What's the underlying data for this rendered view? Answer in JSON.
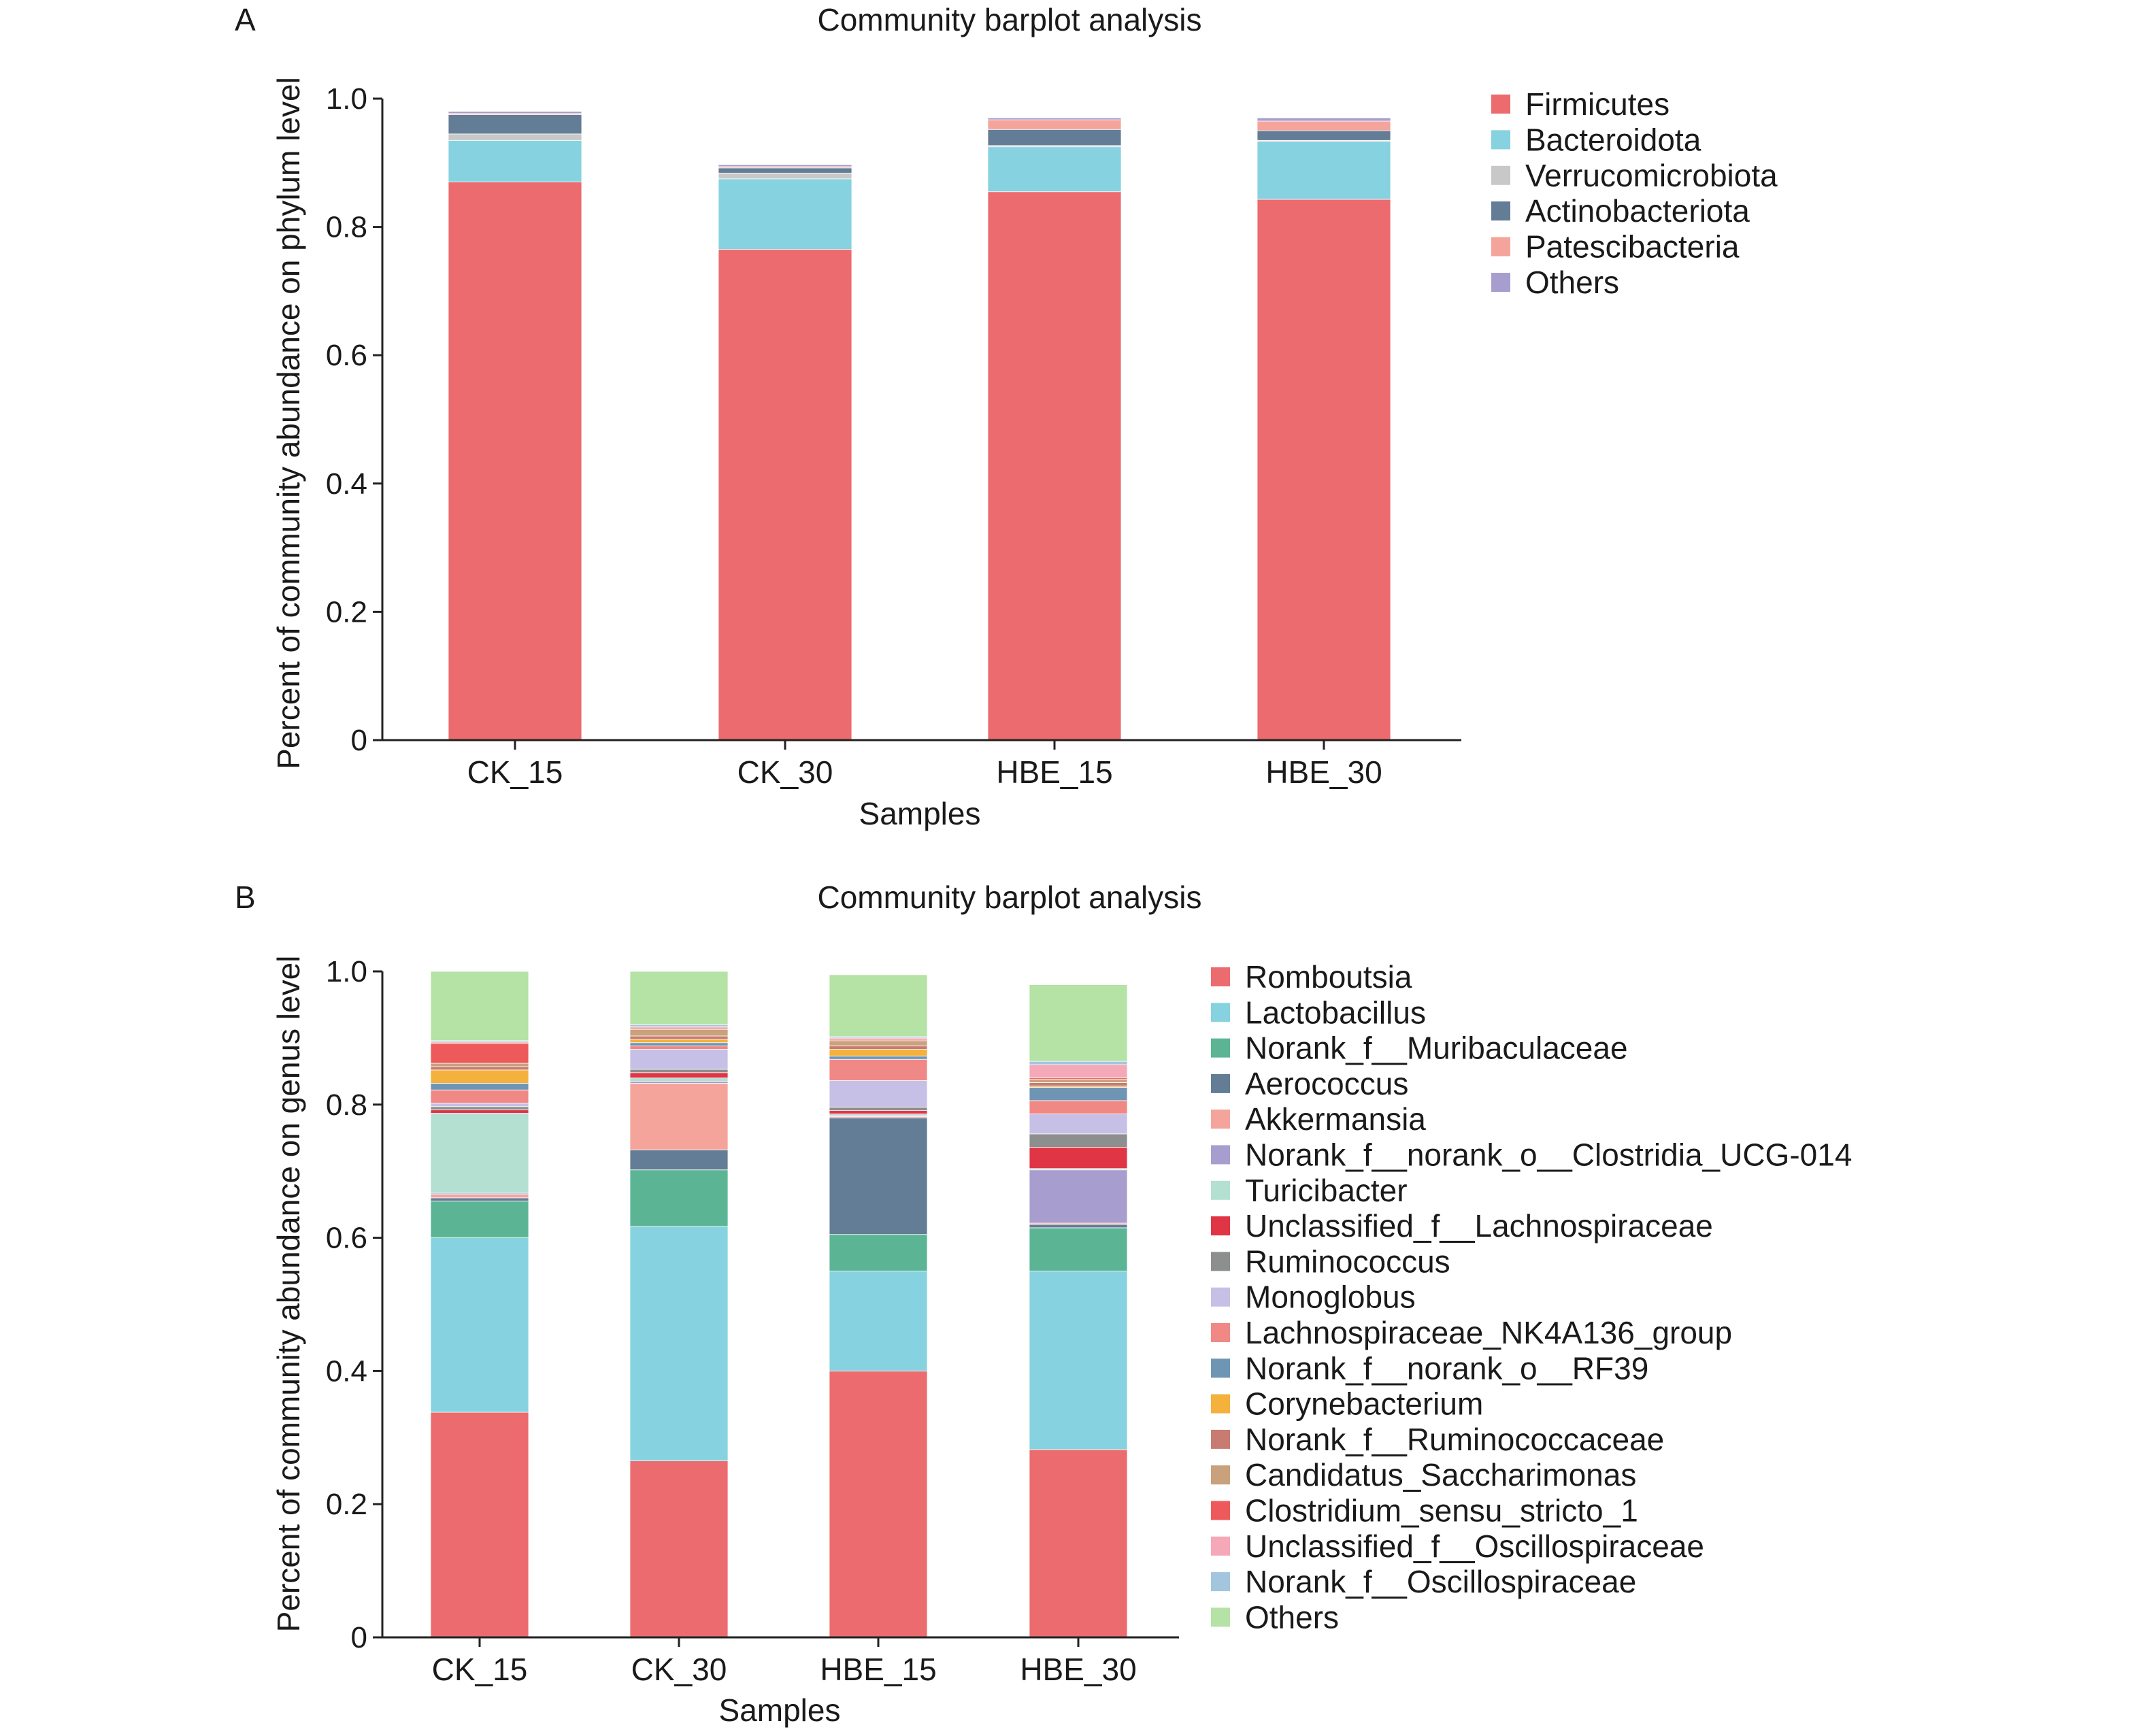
{
  "chart_data": [
    {
      "panel": "A",
      "type": "bar",
      "stacked": true,
      "title": "Community barplot analysis",
      "xlabel": "Samples",
      "ylabel": "Percent of community abundance on phylum level",
      "ylim": [
        0,
        1.0
      ],
      "yticks": [
        "0",
        "0.2",
        "0.4",
        "0.6",
        "0.8",
        "1.0"
      ],
      "categories": [
        "CK_15",
        "CK_30",
        "HBE_15",
        "HBE_30"
      ],
      "legend_position": "right",
      "series": [
        {
          "name": "Firmicutes",
          "color": "#ec6b6e",
          "values": [
            0.87,
            0.765,
            0.855,
            0.843
          ]
        },
        {
          "name": "Bacteroidota",
          "color": "#86d2e0",
          "values": [
            0.065,
            0.11,
            0.07,
            0.09
          ]
        },
        {
          "name": "Verrucomicrobiota",
          "color": "#c8c8c8",
          "values": [
            0.01,
            0.009,
            0.002,
            0.002
          ]
        },
        {
          "name": "Actinobacteriota",
          "color": "#647d96",
          "values": [
            0.03,
            0.008,
            0.025,
            0.015
          ]
        },
        {
          "name": "Patescibacteria",
          "color": "#f4a49a",
          "values": [
            0.002,
            0.002,
            0.015,
            0.015
          ]
        },
        {
          "name": "Others",
          "color": "#a79ecf",
          "values": [
            0.003,
            0.003,
            0.003,
            0.005
          ]
        }
      ]
    },
    {
      "panel": "B",
      "type": "bar",
      "stacked": true,
      "title": "Community barplot analysis",
      "xlabel": "Samples",
      "ylabel": "Percent of community abundance on genus level",
      "ylim": [
        0,
        1.0
      ],
      "yticks": [
        "0",
        "0.2",
        "0.4",
        "0.6",
        "0.8",
        "1.0"
      ],
      "categories": [
        "CK_15",
        "CK_30",
        "HBE_15",
        "HBE_30"
      ],
      "legend_position": "right",
      "series": [
        {
          "name": "Romboutsia",
          "color": "#ec6b6e",
          "values": [
            0.338,
            0.265,
            0.4,
            0.282
          ]
        },
        {
          "name": "Lactobacillus",
          "color": "#86d2e0",
          "values": [
            0.262,
            0.352,
            0.15,
            0.268
          ]
        },
        {
          "name": "Norank_f__Muribaculaceae",
          "color": "#5bb594",
          "values": [
            0.055,
            0.085,
            0.055,
            0.065
          ]
        },
        {
          "name": "Aerococcus",
          "color": "#647d96",
          "values": [
            0.005,
            0.03,
            0.175,
            0.005
          ]
        },
        {
          "name": "Akkermansia",
          "color": "#f4a49a",
          "values": [
            0.005,
            0.1,
            0.002,
            0.002
          ]
        },
        {
          "name": "Norank_f__norank_o__Clostridia_UCG-014",
          "color": "#a79ecf",
          "values": [
            0.002,
            0.003,
            0.002,
            0.08
          ]
        },
        {
          "name": "Turicibacter",
          "color": "#b3e0d1",
          "values": [
            0.12,
            0.005,
            0.002,
            0.002
          ]
        },
        {
          "name": "Unclassified_f__Lachnospiraceae",
          "color": "#e03545",
          "values": [
            0.005,
            0.008,
            0.005,
            0.032
          ]
        },
        {
          "name": "Ruminococcus",
          "color": "#8d8f8f",
          "values": [
            0.005,
            0.005,
            0.005,
            0.02
          ]
        },
        {
          "name": "Monoglobus",
          "color": "#c6c0e6",
          "values": [
            0.005,
            0.03,
            0.04,
            0.03
          ]
        },
        {
          "name": "Lachnospiraceae_NK4A136_group",
          "color": "#f08886",
          "values": [
            0.02,
            0.005,
            0.032,
            0.02
          ]
        },
        {
          "name": "Norank_f__norank_o__RF39",
          "color": "#6f95b5",
          "values": [
            0.01,
            0.005,
            0.005,
            0.02
          ]
        },
        {
          "name": "Corynebacterium",
          "color": "#f4b13c",
          "values": [
            0.02,
            0.005,
            0.01,
            0.002
          ]
        },
        {
          "name": "Norank_f__Ruminococcaceae",
          "color": "#c87b70",
          "values": [
            0.005,
            0.005,
            0.005,
            0.005
          ]
        },
        {
          "name": "Candidatus_Saccharimonas",
          "color": "#c9a17c",
          "values": [
            0.005,
            0.01,
            0.008,
            0.005
          ]
        },
        {
          "name": "Clostridium_sensu_stricto_1",
          "color": "#ee5a5c",
          "values": [
            0.03,
            0.002,
            0.002,
            0.002
          ]
        },
        {
          "name": "Unclassified_f__Oscillospiraceae",
          "color": "#f4a8b8",
          "values": [
            0.002,
            0.002,
            0.002,
            0.02
          ]
        },
        {
          "name": "Norank_f__Oscillospiraceae",
          "color": "#a3c5de",
          "values": [
            0.002,
            0.003,
            0.002,
            0.005
          ]
        },
        {
          "name": "Others",
          "color": "#b5e2a5",
          "values": [
            0.104,
            0.08,
            0.093,
            0.115
          ]
        }
      ]
    }
  ]
}
